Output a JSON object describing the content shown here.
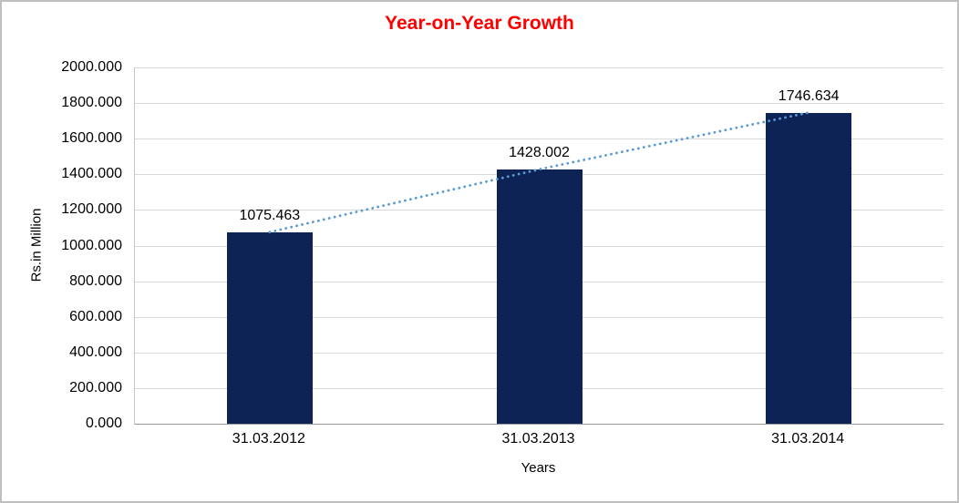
{
  "chart_data": {
    "type": "bar",
    "title": "Year-on-Year Growth",
    "xlabel": "Years",
    "ylabel": "Rs.in Million",
    "categories": [
      "31.03.2012",
      "31.03.2013",
      "31.03.2014"
    ],
    "values": [
      1075.463,
      1428.002,
      1746.634
    ],
    "data_labels": [
      "1075.463",
      "1428.002",
      "1746.634"
    ],
    "ylim": [
      0,
      2000
    ],
    "ytick_labels": [
      "0.000",
      "200.000",
      "400.000",
      "600.000",
      "800.000",
      "1000.000",
      "1200.000",
      "1400.000",
      "1600.000",
      "1800.000",
      "2000.000"
    ],
    "grid": true,
    "legend": "none",
    "trendline": "linear-dotted",
    "colors": {
      "bar": "#0d2356",
      "trendline": "#5b9bd5",
      "title": "#ff0000",
      "gridline": "#d9d9d9",
      "x_axis_line": "#9b9b9b",
      "y_axis_line": "#c6c6c6",
      "frame_border": "#bfbfbf",
      "text": "#000000",
      "background": "#ffffff"
    }
  }
}
